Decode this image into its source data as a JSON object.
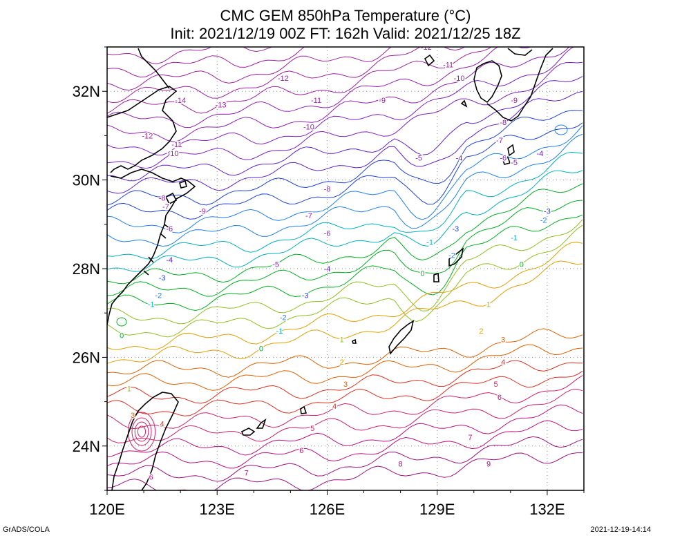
{
  "title": {
    "line1": "CMC GEM 850hPa Temperature (°C)",
    "line2": "Init: 2021/12/19 00Z  FT: 162h  Valid: 2021/12/25 18Z"
  },
  "axes": {
    "lon_labels": [
      "120E",
      "123E",
      "126E",
      "129E",
      "132E"
    ],
    "lat_labels": [
      "32N",
      "30N",
      "28N",
      "26N",
      "24N"
    ],
    "lon_values": [
      120,
      123,
      126,
      129,
      132
    ],
    "lat_values": [
      32,
      30,
      28,
      26,
      24
    ],
    "lon_range": [
      120,
      133
    ],
    "lat_range": [
      23,
      33
    ]
  },
  "contour_labels": [
    {
      "text": "-14",
      "lon": 122.0,
      "lat": 31.8,
      "color": "#a020a0"
    },
    {
      "text": "-13",
      "lon": 123.1,
      "lat": 31.7,
      "color": "#a020a0"
    },
    {
      "text": "-12",
      "lon": 124.8,
      "lat": 32.3,
      "color": "#a020a0"
    },
    {
      "text": "-12",
      "lon": 121.1,
      "lat": 31.0,
      "color": "#a020a0"
    },
    {
      "text": "-12",
      "lon": 128.7,
      "lat": 33.0,
      "color": "#a020a0"
    },
    {
      "text": "-11",
      "lon": 125.7,
      "lat": 31.8,
      "color": "#a020a0"
    },
    {
      "text": "-11",
      "lon": 121.9,
      "lat": 30.8,
      "color": "#a020a0"
    },
    {
      "text": "-11",
      "lon": 129.3,
      "lat": 32.6,
      "color": "#a020a0"
    },
    {
      "text": "-10",
      "lon": 121.8,
      "lat": 30.6,
      "color": "#a020a0"
    },
    {
      "text": "-10",
      "lon": 125.5,
      "lat": 31.2,
      "color": "#a020a0"
    },
    {
      "text": "-10",
      "lon": 129.6,
      "lat": 32.3,
      "color": "#a020a0"
    },
    {
      "text": "-9",
      "lon": 127.5,
      "lat": 31.8,
      "color": "#a020a0"
    },
    {
      "text": "-9",
      "lon": 122.6,
      "lat": 29.3,
      "color": "#a020a0"
    },
    {
      "text": "-9",
      "lon": 131.1,
      "lat": 31.8,
      "color": "#a020a0"
    },
    {
      "text": "-8",
      "lon": 126.0,
      "lat": 29.8,
      "color": "#9020b0"
    },
    {
      "text": "-8",
      "lon": 121.5,
      "lat": 29.6,
      "color": "#9020b0"
    },
    {
      "text": "-8",
      "lon": 130.8,
      "lat": 31.3,
      "color": "#9020b0"
    },
    {
      "text": "-7",
      "lon": 125.5,
      "lat": 29.2,
      "color": "#9020b0"
    },
    {
      "text": "-7",
      "lon": 121.6,
      "lat": 29.4,
      "color": "#9020b0"
    },
    {
      "text": "-7",
      "lon": 130.7,
      "lat": 30.9,
      "color": "#9020b0"
    },
    {
      "text": "-6",
      "lon": 126.0,
      "lat": 28.8,
      "color": "#8020c0"
    },
    {
      "text": "-6",
      "lon": 121.7,
      "lat": 28.9,
      "color": "#8020c0"
    },
    {
      "text": "-6",
      "lon": 130.8,
      "lat": 30.5,
      "color": "#8020c0"
    },
    {
      "text": "-5",
      "lon": 124.6,
      "lat": 28.1,
      "color": "#8020c0"
    },
    {
      "text": "-5",
      "lon": 128.5,
      "lat": 30.5,
      "color": "#8020c0"
    },
    {
      "text": "-5",
      "lon": 131.1,
      "lat": 30.4,
      "color": "#8020c0"
    },
    {
      "text": "-4",
      "lon": 126.0,
      "lat": 28.0,
      "color": "#6020d0"
    },
    {
      "text": "-4",
      "lon": 121.7,
      "lat": 28.2,
      "color": "#6020d0"
    },
    {
      "text": "-4",
      "lon": 129.6,
      "lat": 30.5,
      "color": "#6020d0"
    },
    {
      "text": "-4",
      "lon": 131.8,
      "lat": 30.6,
      "color": "#6020d0"
    },
    {
      "text": "-3",
      "lon": 125.4,
      "lat": 27.4,
      "color": "#2040e0"
    },
    {
      "text": "-3",
      "lon": 121.5,
      "lat": 27.8,
      "color": "#2040e0"
    },
    {
      "text": "-3",
      "lon": 129.5,
      "lat": 28.9,
      "color": "#2040e0"
    },
    {
      "text": "-3",
      "lon": 132.0,
      "lat": 29.3,
      "color": "#2040e0"
    },
    {
      "text": "-2",
      "lon": 124.8,
      "lat": 26.9,
      "color": "#2080f0"
    },
    {
      "text": "-2",
      "lon": 121.4,
      "lat": 27.4,
      "color": "#2080f0"
    },
    {
      "text": "-2",
      "lon": 129.4,
      "lat": 28.3,
      "color": "#2080f0"
    },
    {
      "text": "-2",
      "lon": 131.9,
      "lat": 29.1,
      "color": "#2080f0"
    },
    {
      "text": "-1",
      "lon": 124.7,
      "lat": 26.6,
      "color": "#00b0c0"
    },
    {
      "text": "-1",
      "lon": 121.2,
      "lat": 27.2,
      "color": "#00b0c0"
    },
    {
      "text": "-1",
      "lon": 128.8,
      "lat": 28.6,
      "color": "#00b0c0"
    },
    {
      "text": "-1",
      "lon": 131.1,
      "lat": 28.7,
      "color": "#00b0c0"
    },
    {
      "text": "0",
      "lon": 124.2,
      "lat": 26.2,
      "color": "#00b020"
    },
    {
      "text": "0",
      "lon": 120.4,
      "lat": 26.5,
      "color": "#00b020"
    },
    {
      "text": "0",
      "lon": 128.6,
      "lat": 27.9,
      "color": "#00b020"
    },
    {
      "text": "0",
      "lon": 131.3,
      "lat": 28.1,
      "color": "#00b020"
    },
    {
      "text": "1",
      "lon": 126.4,
      "lat": 26.4,
      "color": "#90c020"
    },
    {
      "text": "1",
      "lon": 120.6,
      "lat": 25.3,
      "color": "#90c020"
    },
    {
      "text": "1",
      "lon": 130.4,
      "lat": 27.2,
      "color": "#90c020"
    },
    {
      "text": "2",
      "lon": 126.4,
      "lat": 25.9,
      "color": "#e0a000"
    },
    {
      "text": "2",
      "lon": 130.2,
      "lat": 26.6,
      "color": "#e0a000"
    },
    {
      "text": "3",
      "lon": 126.5,
      "lat": 25.4,
      "color": "#e06000"
    },
    {
      "text": "3",
      "lon": 120.7,
      "lat": 24.7,
      "color": "#e06000"
    },
    {
      "text": "3",
      "lon": 130.8,
      "lat": 26.4,
      "color": "#e06000"
    },
    {
      "text": "4",
      "lon": 126.2,
      "lat": 24.9,
      "color": "#e03020"
    },
    {
      "text": "4",
      "lon": 121.5,
      "lat": 24.5,
      "color": "#e03020"
    },
    {
      "text": "4",
      "lon": 130.8,
      "lat": 25.9,
      "color": "#e03020"
    },
    {
      "text": "5",
      "lon": 125.6,
      "lat": 24.4,
      "color": "#d0206a"
    },
    {
      "text": "5",
      "lon": 130.6,
      "lat": 25.4,
      "color": "#d0206a"
    },
    {
      "text": "6",
      "lon": 125.3,
      "lat": 23.9,
      "color": "#c01080"
    },
    {
      "text": "6",
      "lon": 121.2,
      "lat": 23.3,
      "color": "#c01080"
    },
    {
      "text": "6",
      "lon": 130.7,
      "lat": 25.1,
      "color": "#c01080"
    },
    {
      "text": "7",
      "lon": 123.8,
      "lat": 23.4,
      "color": "#c01080"
    },
    {
      "text": "7",
      "lon": 129.9,
      "lat": 24.2,
      "color": "#c01080"
    },
    {
      "text": "8",
      "lon": 128.0,
      "lat": 23.6,
      "color": "#a01080"
    },
    {
      "text": "9",
      "lon": 130.4,
      "lat": 23.6,
      "color": "#a01080"
    }
  ],
  "footer": {
    "left": "GrADS/COLA",
    "right": "2021-12-19-14:14"
  }
}
